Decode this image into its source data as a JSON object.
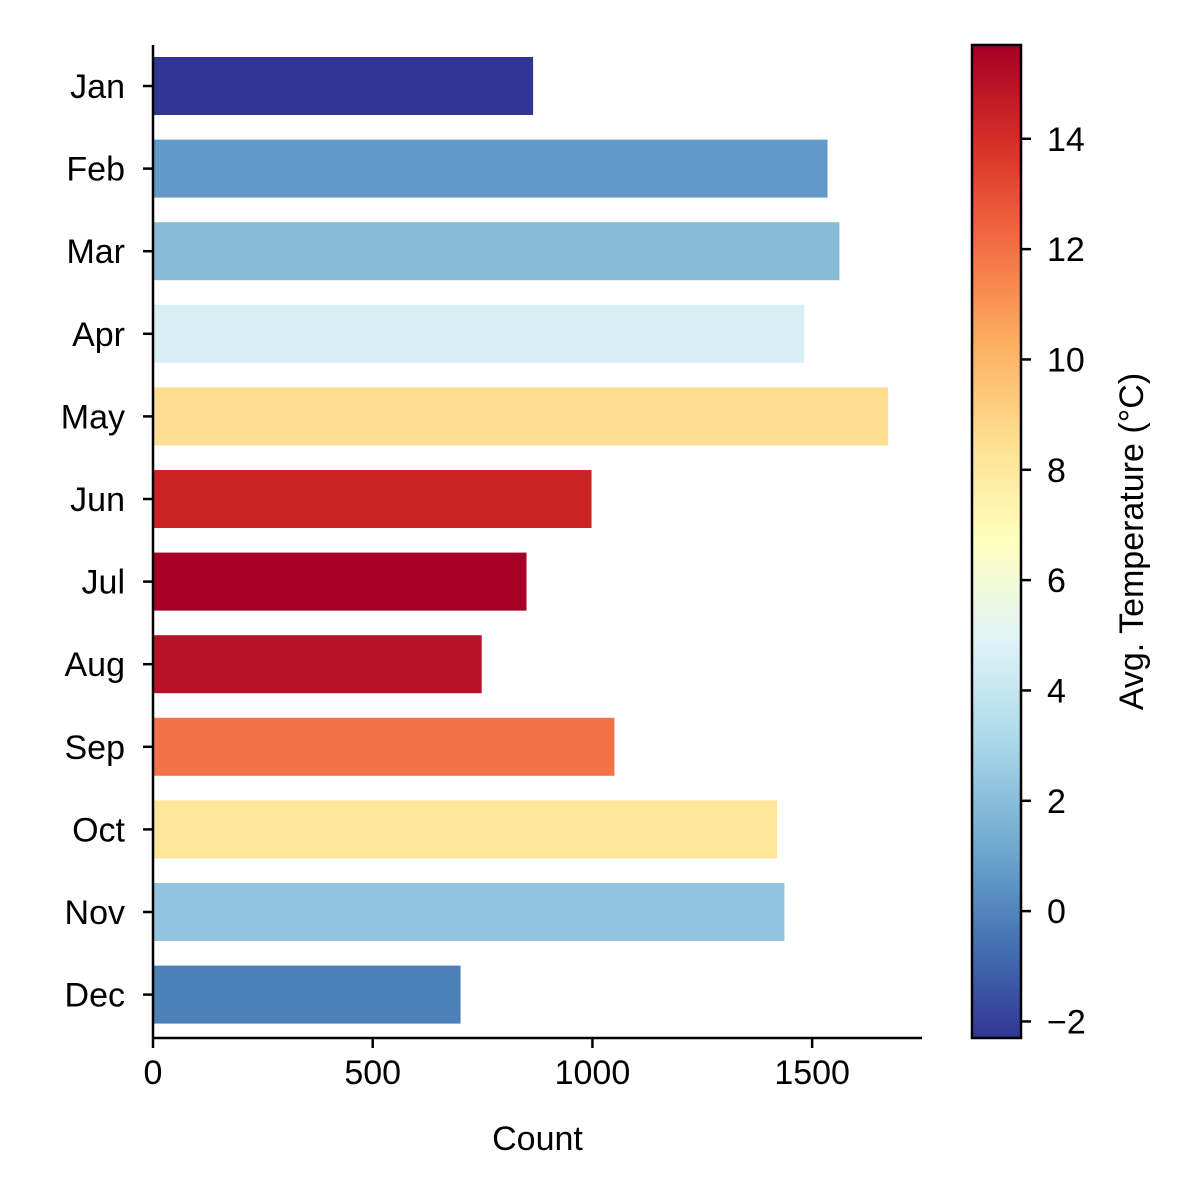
{
  "chart_data": {
    "type": "bar",
    "orientation": "horizontal",
    "categories": [
      "Jan",
      "Feb",
      "Mar",
      "Apr",
      "May",
      "Jun",
      "Jul",
      "Aug",
      "Sep",
      "Oct",
      "Nov",
      "Dec"
    ],
    "values": [
      865,
      1535,
      1562,
      1482,
      1673,
      998,
      850,
      748,
      1050,
      1420,
      1437,
      700
    ],
    "bar_colors": [
      "#313695",
      "#6399c6",
      "#88bbd8",
      "#d9eff6",
      "#fddd90",
      "#cb2427",
      "#a50026",
      "#b51227",
      "#f47346",
      "#fde698",
      "#93c4df",
      "#4c80b9"
    ],
    "xlabel": "Count",
    "ylabel": "",
    "title": "",
    "xlim": [
      0,
      1750
    ],
    "xticks": [
      0,
      500,
      1000,
      1500
    ],
    "xtick_labels": [
      "0",
      "500",
      "1000",
      "1500"
    ],
    "grid": false,
    "colorbar": {
      "label": "Avg. Temperature (°C)",
      "range": [
        -2.3,
        15.7
      ],
      "ticks": [
        -2,
        0,
        2,
        4,
        6,
        8,
        10,
        12,
        14
      ],
      "tick_labels": [
        "−2",
        "0",
        "2",
        "4",
        "6",
        "8",
        "10",
        "12",
        "14"
      ],
      "colormap_stops": [
        "#313695",
        "#4575b4",
        "#74add1",
        "#abd9e9",
        "#e0f3f8",
        "#ffffbf",
        "#fee090",
        "#fdae61",
        "#f46d43",
        "#d73027",
        "#a50026"
      ]
    }
  }
}
